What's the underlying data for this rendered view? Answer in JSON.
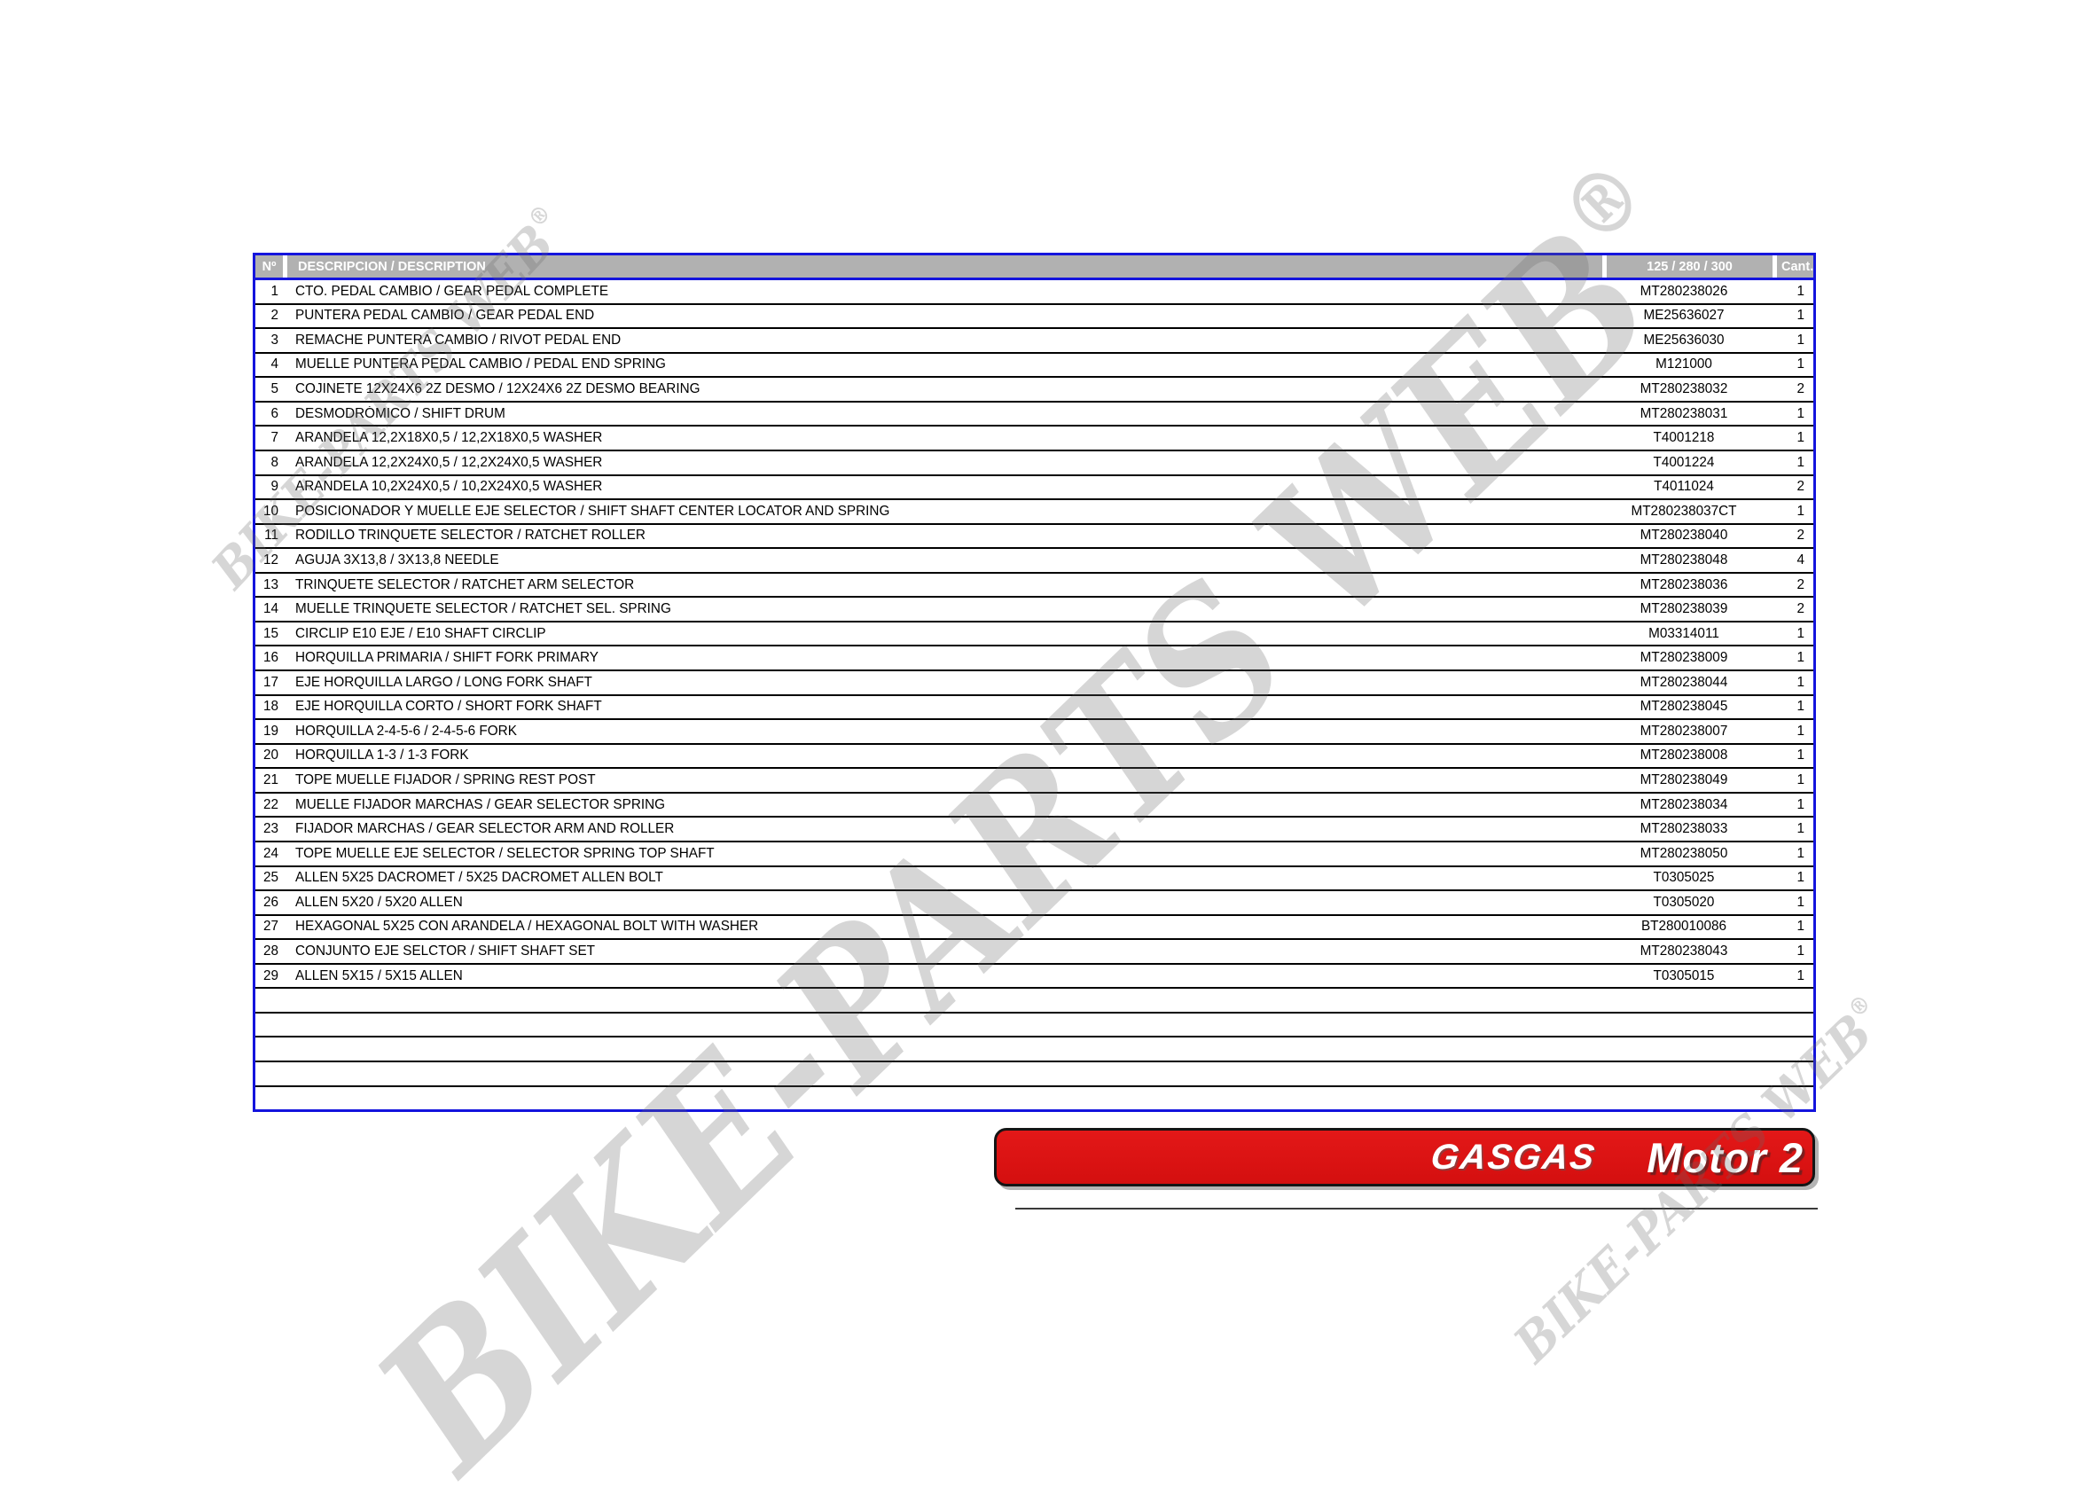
{
  "table": {
    "border_color": "#1414dd",
    "header": {
      "bg": "#b1b1b1",
      "text_color": "#ffffff",
      "col_num": "Nº",
      "col_desc": "DESCRIPCION / DESCRIPTION",
      "col_part": "125 / 280 / 300",
      "col_qty": "Cant."
    },
    "rows": [
      {
        "num": "1",
        "desc": "CTO. PEDAL CAMBIO / GEAR PEDAL COMPLETE",
        "part": "MT280238026",
        "qty": "1"
      },
      {
        "num": "2",
        "desc": "PUNTERA PEDAL CAMBIO / GEAR PEDAL END",
        "part": "ME25636027",
        "qty": "1"
      },
      {
        "num": "3",
        "desc": "REMACHE PUNTERA CAMBIO / RIVOT PEDAL END",
        "part": "ME25636030",
        "qty": "1"
      },
      {
        "num": "4",
        "desc": "MUELLE PUNTERA PEDAL CAMBIO / PEDAL END SPRING",
        "part": "M121000",
        "qty": "1"
      },
      {
        "num": "5",
        "desc": "COJINETE 12X24X6 2Z DESMO / 12X24X6 2Z DESMO BEARING",
        "part": "MT280238032",
        "qty": "2"
      },
      {
        "num": "6",
        "desc": "DESMODRÓMICO / SHIFT DRUM",
        "part": "MT280238031",
        "qty": "1"
      },
      {
        "num": "7",
        "desc": "ARANDELA 12,2X18X0,5 / 12,2X18X0,5 WASHER",
        "part": "T4001218",
        "qty": "1"
      },
      {
        "num": "8",
        "desc": "ARANDELA 12,2X24X0,5 / 12,2X24X0,5 WASHER",
        "part": "T4001224",
        "qty": "1"
      },
      {
        "num": "9",
        "desc": "ARANDELA 10,2X24X0,5 / 10,2X24X0,5 WASHER",
        "part": "T4011024",
        "qty": "2"
      },
      {
        "num": "10",
        "desc": "POSICIONADOR Y MUELLE EJE SELECTOR / SHIFT SHAFT CENTER LOCATOR AND SPRING",
        "part": "MT280238037CT",
        "qty": "1"
      },
      {
        "num": "11",
        "desc": "RODILLO TRINQUETE SELECTOR / RATCHET ROLLER",
        "part": "MT280238040",
        "qty": "2"
      },
      {
        "num": "12",
        "desc": "AGUJA 3X13,8 / 3X13,8 NEEDLE",
        "part": "MT280238048",
        "qty": "4"
      },
      {
        "num": "13",
        "desc": "TRINQUETE SELECTOR / RATCHET ARM SELECTOR",
        "part": "MT280238036",
        "qty": "2"
      },
      {
        "num": "14",
        "desc": "MUELLE TRINQUETE SELECTOR / RATCHET SEL. SPRING",
        "part": "MT280238039",
        "qty": "2"
      },
      {
        "num": "15",
        "desc": "CIRCLIP E10 EJE / E10 SHAFT CIRCLIP",
        "part": "M03314011",
        "qty": "1"
      },
      {
        "num": "16",
        "desc": "HORQUILLA PRIMARIA / SHIFT FORK PRIMARY",
        "part": "MT280238009",
        "qty": "1"
      },
      {
        "num": "17",
        "desc": "EJE HORQUILLA LARGO / LONG FORK SHAFT",
        "part": "MT280238044",
        "qty": "1"
      },
      {
        "num": "18",
        "desc": "EJE HORQUILLA CORTO / SHORT FORK SHAFT",
        "part": "MT280238045",
        "qty": "1"
      },
      {
        "num": "19",
        "desc": "HORQUILLA 2-4-5-6 / 2-4-5-6 FORK",
        "part": "MT280238007",
        "qty": "1"
      },
      {
        "num": "20",
        "desc": "HORQUILLA 1-3 / 1-3 FORK",
        "part": "MT280238008",
        "qty": "1"
      },
      {
        "num": "21",
        "desc": "TOPE MUELLE FIJADOR / SPRING REST POST",
        "part": "MT280238049",
        "qty": "1"
      },
      {
        "num": "22",
        "desc": "MUELLE FIJADOR MARCHAS / GEAR SELECTOR SPRING",
        "part": "MT280238034",
        "qty": "1"
      },
      {
        "num": "23",
        "desc": "FIJADOR MARCHAS / GEAR SELECTOR ARM AND ROLLER",
        "part": "MT280238033",
        "qty": "1"
      },
      {
        "num": "24",
        "desc": "TOPE MUELLE EJE SELECTOR / SELECTOR SPRING TOP SHAFT",
        "part": "MT280238050",
        "qty": "1"
      },
      {
        "num": "25",
        "desc": "ALLEN 5X25 DACROMET / 5X25 DACROMET ALLEN  BOLT",
        "part": "T0305025",
        "qty": "1"
      },
      {
        "num": "26",
        "desc": "ALLEN 5X20 / 5X20 ALLEN",
        "part": "T0305020",
        "qty": "1"
      },
      {
        "num": "27",
        "desc": "HEXAGONAL 5X25 CON ARANDELA / HEXAGONAL BOLT WITH WASHER",
        "part": "BT280010086",
        "qty": "1"
      },
      {
        "num": "28",
        "desc": "CONJUNTO EJE SELCTOR / SHIFT SHAFT SET",
        "part": "MT280238043",
        "qty": "1"
      },
      {
        "num": "29",
        "desc": "ALLEN 5X15 / 5X15 ALLEN",
        "part": "T0305015",
        "qty": "1"
      }
    ],
    "empty_row_count": 5
  },
  "footer": {
    "brand": "GASGAS",
    "title": "Motor 2",
    "banner_color": "#d81212"
  },
  "watermark": {
    "text": "BIKE-PARTS WEB",
    "reg": "®",
    "color": "#d8d8d8"
  }
}
